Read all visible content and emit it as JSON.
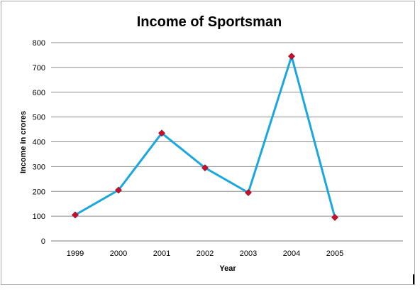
{
  "chart_data": {
    "type": "line",
    "title": "Income of Sportsman",
    "xlabel": "Year",
    "ylabel": "Income in crores",
    "categories": [
      "1999",
      "2000",
      "2001",
      "2002",
      "2003",
      "2004",
      "2005"
    ],
    "series": [
      {
        "values": [
          105,
          205,
          435,
          295,
          195,
          745,
          95
        ]
      }
    ],
    "ylim": [
      0,
      800
    ],
    "yticks": [
      0,
      100,
      200,
      300,
      400,
      500,
      600,
      700,
      800
    ],
    "grid": true,
    "legend": "none",
    "line_color": "#1aa7e0",
    "marker_color": "#c8102e"
  }
}
